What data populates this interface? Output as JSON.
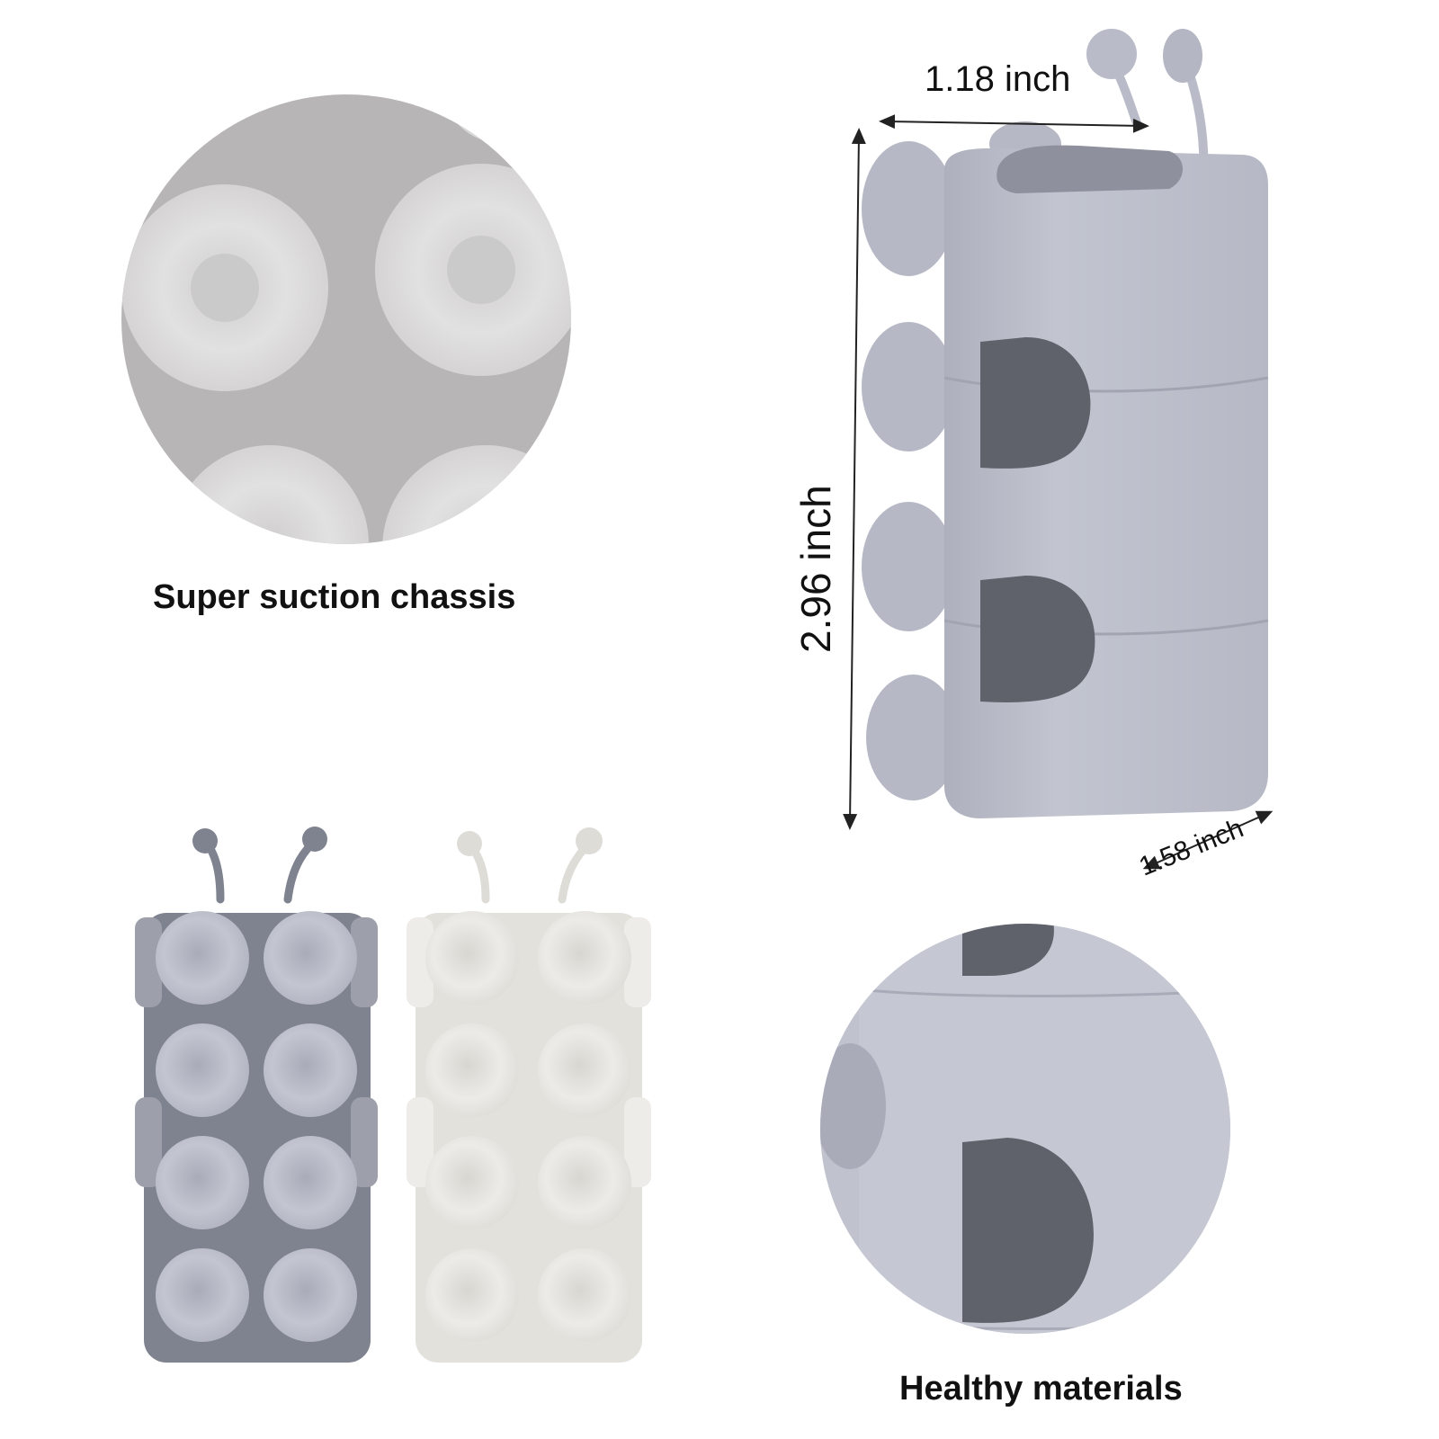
{
  "captions": {
    "suction": "Super suction chassis",
    "materials": "Healthy materials"
  },
  "dimensions": {
    "width": "1.18 inch",
    "height": "2.96 inch",
    "depth": "1.58 inch"
  },
  "colors": {
    "silicone_blue_grey": "#b9bcc8",
    "silicone_shadow": "#9ea1ae",
    "dark_grey_variant": "#7f838f",
    "light_cream_variant": "#e3e1dc",
    "opening_dark": "#5f626b",
    "suction_zoom_bg": "#b7b5b6",
    "suction_cup_light": "#dcdbdb"
  }
}
